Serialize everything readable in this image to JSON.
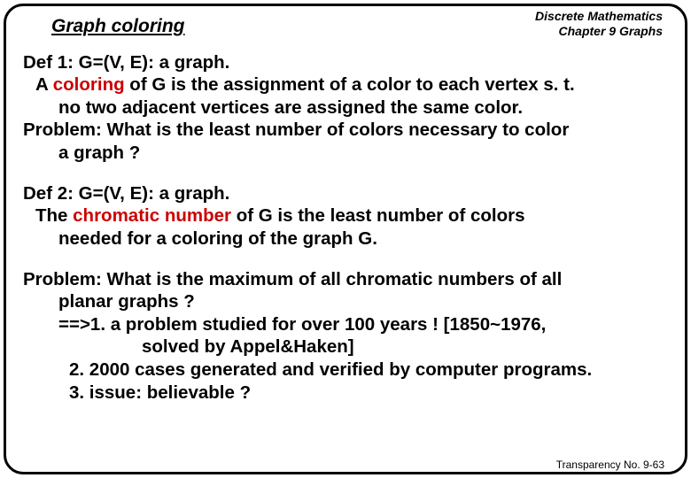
{
  "header": {
    "title": "Graph coloring",
    "course_line1": "Discrete Mathematics",
    "course_line2": "Chapter 9 Graphs"
  },
  "def1": {
    "line1": "Def 1: G=(V, E): a graph.",
    "line2a": "A ",
    "line2b_red": "coloring",
    "line2c": " of G is  the assignment of a color to each vertex s. t.",
    "line3": "no two adjacent vertices are assigned the same color.",
    "line4": "Problem: What is the least number of colors necessary to color",
    "line5": "a graph ?"
  },
  "def2": {
    "line1": "Def 2: G=(V, E): a graph.",
    "line2a": "The ",
    "line2b_red": "chromatic number",
    "line2c": " of G is the least number of colors",
    "line3": "needed for a coloring of the graph G."
  },
  "problem": {
    "line1": "Problem: What is the maximum of all chromatic numbers of all",
    "line2": "planar graphs ?",
    "line3": "==>1.  a problem studied for over 100 years ! [1850~1976,",
    "line4": "solved by Appel&Haken]",
    "line5": "2. 2000 cases generated and verified by computer programs.",
    "line6": "3. issue: believable ?"
  },
  "footer": {
    "text": "Transparency No. 9-63"
  }
}
